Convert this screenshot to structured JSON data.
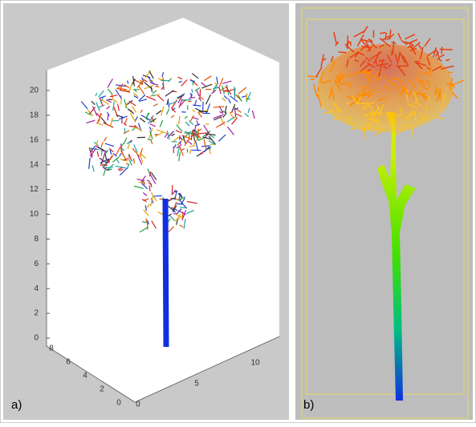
{
  "panel_a": {
    "label": "a)",
    "z_ticks": [
      "0",
      "2",
      "4",
      "6",
      "8",
      "10",
      "12",
      "14",
      "16",
      "18",
      "20"
    ],
    "y_ticks": [
      "0",
      "2",
      "4",
      "6",
      "8"
    ],
    "x_ticks": [
      "0",
      "5",
      "10"
    ]
  },
  "panel_b": {
    "label": "b)"
  }
}
